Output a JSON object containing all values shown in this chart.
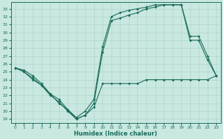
{
  "xlabel": "Humidex (Indice chaleur)",
  "bg_color": "#c8e8e0",
  "line_color": "#1a6b5a",
  "grid_color": "#a8d0c8",
  "xlim": [
    -0.5,
    23.5
  ],
  "ylim": [
    18.5,
    33.8
  ],
  "yticks": [
    19,
    20,
    21,
    22,
    23,
    24,
    25,
    26,
    27,
    28,
    29,
    30,
    31,
    32,
    33
  ],
  "xticks": [
    0,
    1,
    2,
    3,
    4,
    5,
    6,
    7,
    8,
    9,
    10,
    11,
    12,
    13,
    14,
    15,
    16,
    17,
    18,
    19,
    20,
    21,
    22,
    23
  ],
  "line1_x": [
    0,
    1,
    2,
    3,
    4,
    5,
    6,
    7,
    8,
    9,
    10,
    11,
    12,
    13,
    14,
    15,
    16,
    17,
    18,
    19,
    20,
    21,
    22,
    23
  ],
  "line1_y": [
    25.5,
    25.0,
    24.0,
    23.3,
    22.2,
    21.0,
    20.2,
    19.0,
    19.5,
    20.5,
    23.5,
    23.5,
    23.5,
    23.5,
    23.5,
    24.0,
    24.0,
    24.0,
    24.0,
    24.0,
    24.0,
    24.0,
    24.0,
    24.5
  ],
  "line2_x": [
    0,
    1,
    2,
    3,
    4,
    5,
    6,
    7,
    8,
    9,
    10,
    11,
    12,
    13,
    14,
    15,
    16,
    17,
    18,
    19,
    20,
    21,
    22,
    23
  ],
  "line2_y": [
    25.5,
    25.0,
    24.2,
    23.3,
    22.0,
    21.2,
    20.0,
    19.0,
    19.5,
    21.0,
    27.5,
    31.5,
    31.8,
    32.2,
    32.5,
    33.0,
    33.2,
    33.5,
    33.5,
    33.5,
    29.0,
    29.0,
    26.5,
    24.5
  ],
  "line3_x": [
    0,
    1,
    2,
    3,
    4,
    5,
    6,
    7,
    8,
    9,
    10,
    11,
    12,
    13,
    14,
    15,
    16,
    17,
    18,
    19,
    20,
    21,
    22,
    23
  ],
  "line3_y": [
    25.5,
    25.2,
    24.5,
    23.5,
    22.2,
    21.5,
    20.2,
    19.2,
    20.0,
    21.5,
    28.2,
    32.0,
    32.5,
    32.8,
    33.0,
    33.2,
    33.5,
    33.5,
    33.5,
    33.5,
    29.5,
    29.5,
    27.0,
    24.5
  ]
}
